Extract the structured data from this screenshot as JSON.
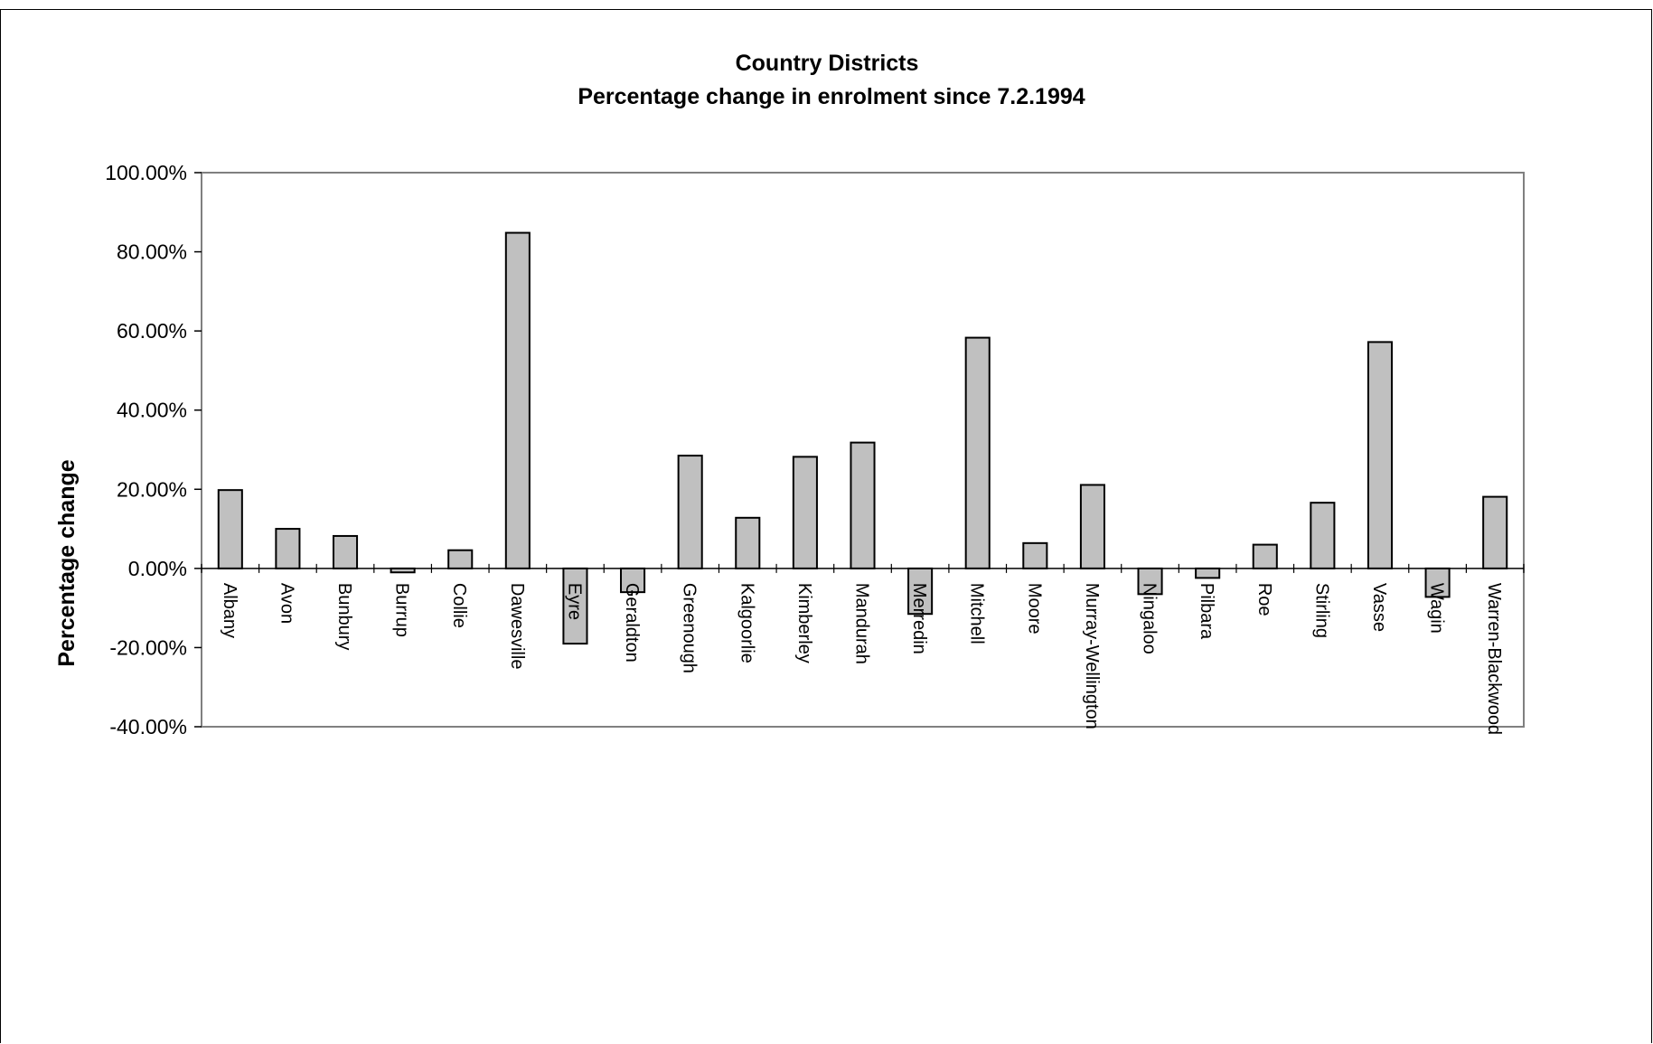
{
  "chart_data": {
    "type": "bar",
    "title": "Country Districts",
    "subtitle": "Percentage change in enrolment since 7.2.1994",
    "xlabel": "",
    "ylabel": "Percentage change",
    "ylim": [
      -40,
      100
    ],
    "yticks": [
      100,
      80,
      60,
      40,
      20,
      0,
      -20,
      -40
    ],
    "ytick_labels": [
      "100.00%",
      "80.00%",
      "60.00%",
      "40.00%",
      "20.00%",
      "0.00%",
      "-20.00%",
      "-40.00%"
    ],
    "grid": false,
    "legend": "none",
    "bar_color": "#c0c0c0",
    "bar_edge_color": "#000000",
    "plot_border_color": "#808080",
    "categories": [
      "Albany",
      "Avon",
      "Bunbury",
      "Burrup",
      "Collie",
      "Dawesville",
      "Eyre",
      "Geraldton",
      "Greenough",
      "Kalgoorlie",
      "Kimberley",
      "Mandurah",
      "Merredin",
      "Mitchell",
      "Moore",
      "Murray-Wellington",
      "Ningaloo",
      "Pilbara",
      "Roe",
      "Stirling",
      "Vasse",
      "Wagin",
      "Warren-Blackwood"
    ],
    "series": [
      {
        "values": [
          19.8,
          10.0,
          8.2,
          -1.0,
          4.6,
          84.8,
          -19.0,
          -6.0,
          28.5,
          12.8,
          28.2,
          31.8,
          -11.5,
          58.3,
          6.4,
          21.1,
          -6.5,
          -2.4,
          6.0,
          16.6,
          57.2,
          -7.2,
          18.1
        ]
      }
    ]
  }
}
